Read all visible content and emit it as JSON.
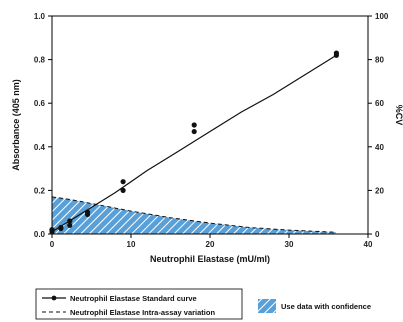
{
  "chart_data": {
    "type": "line",
    "xlabel": "Neutrophil Elastase (mU/ml)",
    "ylabel_left": "Absorbance (405 nm)",
    "ylabel_right": "%CV",
    "xlim": [
      0,
      40
    ],
    "ylim_left": [
      0,
      1.0
    ],
    "ylim_right": [
      0,
      100
    ],
    "x_ticks": [
      "0",
      "10",
      "20",
      "30",
      "40"
    ],
    "y_left_ticks": [
      "0.0",
      "0.2",
      "0.4",
      "0.6",
      "0.8",
      "1.0"
    ],
    "y_right_ticks": [
      "0",
      "20",
      "40",
      "60",
      "80",
      "100"
    ],
    "grid": false,
    "legend_position": "bottom",
    "series": [
      {
        "name": "Neutrophil Elastase Standard curve",
        "style": "solid-line-with-points",
        "color": "#111111",
        "points": [
          {
            "x": 0,
            "y": 0.01
          },
          {
            "x": 0,
            "y": 0.02
          },
          {
            "x": 1.125,
            "y": 0.03
          },
          {
            "x": 1.125,
            "y": 0.025
          },
          {
            "x": 2.25,
            "y": 0.04
          },
          {
            "x": 2.25,
            "y": 0.06
          },
          {
            "x": 4.5,
            "y": 0.09
          },
          {
            "x": 4.5,
            "y": 0.1
          },
          {
            "x": 9,
            "y": 0.2
          },
          {
            "x": 9,
            "y": 0.24
          },
          {
            "x": 18,
            "y": 0.47
          },
          {
            "x": 18,
            "y": 0.5
          },
          {
            "x": 36,
            "y": 0.82
          },
          {
            "x": 36,
            "y": 0.83
          }
        ],
        "curve": [
          {
            "x": 0,
            "y": 0.01
          },
          {
            "x": 4,
            "y": 0.1
          },
          {
            "x": 8,
            "y": 0.19
          },
          {
            "x": 12,
            "y": 0.29
          },
          {
            "x": 16,
            "y": 0.38
          },
          {
            "x": 20,
            "y": 0.47
          },
          {
            "x": 24,
            "y": 0.56
          },
          {
            "x": 28,
            "y": 0.64
          },
          {
            "x": 32,
            "y": 0.73
          },
          {
            "x": 36,
            "y": 0.82
          }
        ]
      },
      {
        "name": "Neutrophil Elastase Intra-assay variation",
        "style": "dashed-line",
        "axis": "right",
        "color": "#111111",
        "values": [
          {
            "x": 0,
            "y": 17
          },
          {
            "x": 2,
            "y": 16
          },
          {
            "x": 5,
            "y": 14
          },
          {
            "x": 10,
            "y": 10.5
          },
          {
            "x": 15,
            "y": 7.5
          },
          {
            "x": 20,
            "y": 5
          },
          {
            "x": 25,
            "y": 3
          },
          {
            "x": 30,
            "y": 1.8
          },
          {
            "x": 36,
            "y": 0.8
          }
        ]
      }
    ],
    "shaded_region": {
      "label": "Use data with confidence",
      "fill_color": "#5aa0d8",
      "stripe_color": "#ffffff"
    }
  }
}
